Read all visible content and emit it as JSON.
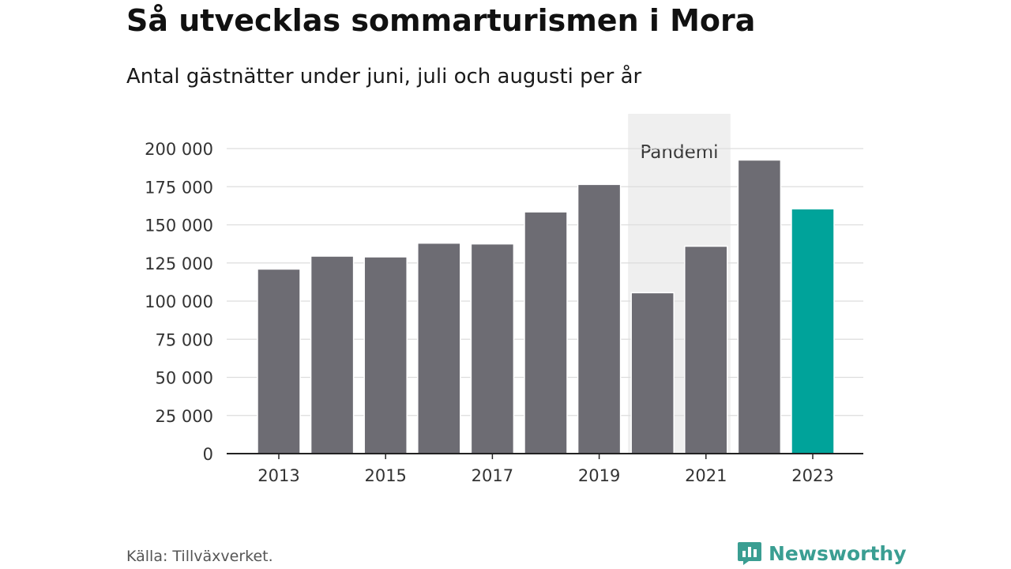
{
  "header": {
    "title": "Så utvecklas sommarturismen i Mora",
    "subtitle": "Antal gästnätter under juni, juli och augusti per år"
  },
  "footer": {
    "source": "Källa: Tillväxverket.",
    "brand": "Newsworthy",
    "brand_icon": "newsworthy-logo-icon"
  },
  "colors": {
    "bar": "#6d6c73",
    "highlight_bar": "#00a39a",
    "pandemic_band": "#efefef",
    "grid": "#dddddd",
    "axis": "#222222",
    "brand": "#3a9e92"
  },
  "chart_data": {
    "type": "bar",
    "title": "Så utvecklas sommarturismen i Mora",
    "subtitle": "Antal gästnätter under juni, juli och augusti per år",
    "xlabel": "",
    "ylabel": "",
    "categories": [
      "2013",
      "2014",
      "2015",
      "2016",
      "2017",
      "2018",
      "2019",
      "2020",
      "2021",
      "2022",
      "2023"
    ],
    "values": [
      121000,
      129500,
      129000,
      138000,
      137500,
      158500,
      176500,
      105500,
      136000,
      192500,
      160500
    ],
    "highlight": "2023",
    "ylim": [
      0,
      200000
    ],
    "yticks": [
      0,
      25000,
      50000,
      75000,
      100000,
      125000,
      150000,
      175000,
      200000
    ],
    "ytick_labels": [
      "0",
      "25 000",
      "50 000",
      "75 000",
      "100 000",
      "125 000",
      "150 000",
      "175 000",
      "200 000"
    ],
    "xtick_labels": [
      "2013",
      "2015",
      "2017",
      "2019",
      "2021",
      "2023"
    ],
    "grid": true,
    "annotation": {
      "label": "Pandemi",
      "start": "2020",
      "end": "2021"
    }
  }
}
